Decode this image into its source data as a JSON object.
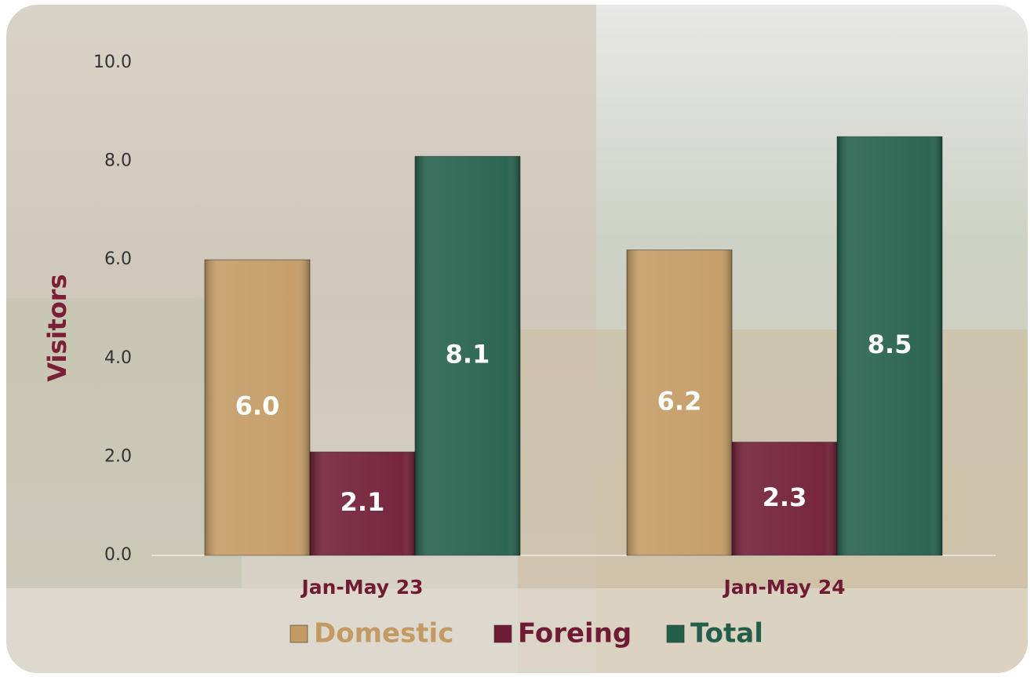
{
  "chart_data": {
    "type": "bar",
    "y_label": "Visitors",
    "categories": [
      "Jan-May 23",
      "Jan-May 24"
    ],
    "series": [
      {
        "name": "Domestic",
        "color": "#c39a63",
        "values": [
          6.0,
          6.2
        ],
        "value_labels": [
          "6.0",
          "6.2"
        ]
      },
      {
        "name": "Foreing",
        "color": "#6f1b33",
        "values": [
          2.1,
          2.3
        ],
        "value_labels": [
          "2.1",
          "2.3"
        ]
      },
      {
        "name": "Total",
        "color": "#225e4a",
        "values": [
          8.1,
          8.5
        ],
        "value_labels": [
          "8.1",
          "8.5"
        ]
      }
    ],
    "ylim": [
      0,
      10
    ],
    "yticks": [
      {
        "value": 0,
        "label": "0.0"
      },
      {
        "value": 2,
        "label": "2.0"
      },
      {
        "value": 4,
        "label": "4.0"
      },
      {
        "value": 6,
        "label": "6.0"
      },
      {
        "value": 8,
        "label": "8.0"
      },
      {
        "value": 10,
        "label": "10.0"
      }
    ],
    "grid": false,
    "legend": "bottom"
  }
}
